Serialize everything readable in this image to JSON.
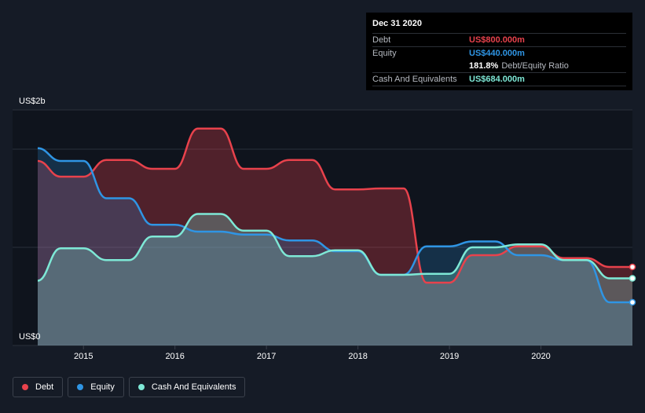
{
  "tooltip": {
    "date": "Dec 31 2020",
    "debt_label": "Debt",
    "debt_value": "US$800.000m",
    "equity_label": "Equity",
    "equity_value": "US$440.000m",
    "ratio_value": "181.8%",
    "ratio_label": "Debt/Equity Ratio",
    "cash_label": "Cash And Equivalents",
    "cash_value": "US$684.000m"
  },
  "legend": {
    "debt": "Debt",
    "equity": "Equity",
    "cash": "Cash And Equivalents"
  },
  "colors": {
    "debt": "#e8424c",
    "equity": "#2f95e4",
    "cash": "#7ee8d6",
    "background": "#151b26"
  },
  "chart_data": {
    "type": "area",
    "y_top_label": "US$2b",
    "y_bottom_label": "US$0",
    "ylim": [
      0,
      2400
    ],
    "xlim": [
      2014.5,
      2021.0
    ],
    "x_ticks": [
      {
        "value": 2015,
        "label": "2015"
      },
      {
        "value": 2016,
        "label": "2016"
      },
      {
        "value": 2017,
        "label": "2017"
      },
      {
        "value": 2018,
        "label": "2018"
      },
      {
        "value": 2019,
        "label": "2019"
      },
      {
        "value": 2020,
        "label": "2020"
      }
    ],
    "gridlines": [
      1000,
      2000,
      2400
    ],
    "series": [
      {
        "name": "Debt",
        "key": "debt",
        "points": [
          [
            2014.5,
            1880
          ],
          [
            2014.75,
            1720
          ],
          [
            2015.0,
            1720
          ],
          [
            2015.25,
            1890
          ],
          [
            2015.5,
            1890
          ],
          [
            2015.75,
            1800
          ],
          [
            2016.0,
            1800
          ],
          [
            2016.25,
            2210
          ],
          [
            2016.5,
            2210
          ],
          [
            2016.75,
            1800
          ],
          [
            2017.0,
            1800
          ],
          [
            2017.25,
            1890
          ],
          [
            2017.5,
            1890
          ],
          [
            2017.75,
            1590
          ],
          [
            2018.0,
            1590
          ],
          [
            2018.25,
            1600
          ],
          [
            2018.5,
            1600
          ],
          [
            2018.75,
            640
          ],
          [
            2019.0,
            640
          ],
          [
            2019.25,
            920
          ],
          [
            2019.5,
            920
          ],
          [
            2019.75,
            1010
          ],
          [
            2020.0,
            1010
          ],
          [
            2020.25,
            890
          ],
          [
            2020.5,
            890
          ],
          [
            2020.75,
            800
          ],
          [
            2021.0,
            800
          ]
        ]
      },
      {
        "name": "Equity",
        "key": "equity",
        "points": [
          [
            2014.5,
            2010
          ],
          [
            2014.75,
            1880
          ],
          [
            2015.0,
            1880
          ],
          [
            2015.25,
            1500
          ],
          [
            2015.5,
            1500
          ],
          [
            2015.75,
            1230
          ],
          [
            2016.0,
            1230
          ],
          [
            2016.25,
            1160
          ],
          [
            2016.5,
            1160
          ],
          [
            2016.75,
            1130
          ],
          [
            2017.0,
            1130
          ],
          [
            2017.25,
            1070
          ],
          [
            2017.5,
            1070
          ],
          [
            2017.75,
            960
          ],
          [
            2018.0,
            960
          ],
          [
            2018.25,
            720
          ],
          [
            2018.5,
            720
          ],
          [
            2018.75,
            1010
          ],
          [
            2019.0,
            1010
          ],
          [
            2019.25,
            1060
          ],
          [
            2019.5,
            1060
          ],
          [
            2019.75,
            920
          ],
          [
            2020.0,
            920
          ],
          [
            2020.25,
            870
          ],
          [
            2020.5,
            870
          ],
          [
            2020.75,
            440
          ],
          [
            2021.0,
            440
          ]
        ]
      },
      {
        "name": "Cash And Equivalents",
        "key": "cash",
        "points": [
          [
            2014.5,
            660
          ],
          [
            2014.75,
            990
          ],
          [
            2015.0,
            990
          ],
          [
            2015.25,
            870
          ],
          [
            2015.5,
            870
          ],
          [
            2015.75,
            1110
          ],
          [
            2016.0,
            1110
          ],
          [
            2016.25,
            1340
          ],
          [
            2016.5,
            1340
          ],
          [
            2016.75,
            1170
          ],
          [
            2017.0,
            1170
          ],
          [
            2017.25,
            910
          ],
          [
            2017.5,
            910
          ],
          [
            2017.75,
            970
          ],
          [
            2018.0,
            970
          ],
          [
            2018.25,
            720
          ],
          [
            2018.5,
            720
          ],
          [
            2018.75,
            730
          ],
          [
            2019.0,
            730
          ],
          [
            2019.25,
            1000
          ],
          [
            2019.5,
            1000
          ],
          [
            2019.75,
            1030
          ],
          [
            2020.0,
            1030
          ],
          [
            2020.25,
            870
          ],
          [
            2020.5,
            870
          ],
          [
            2020.75,
            684
          ],
          [
            2021.0,
            684
          ]
        ]
      }
    ]
  }
}
